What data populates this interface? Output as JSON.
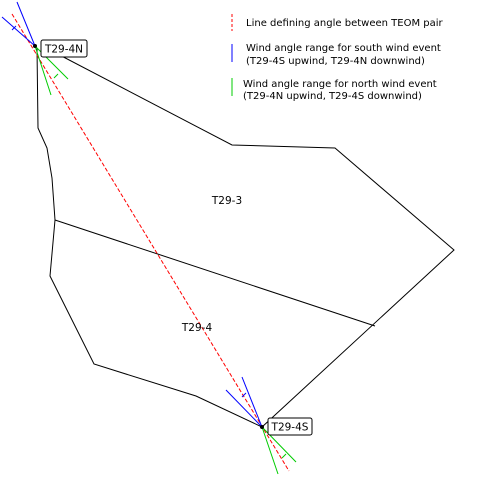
{
  "legend": {
    "pair_line": {
      "label": "Line defining angle between TEOM pair",
      "color": "#ff0000"
    },
    "south_wind": {
      "line1": "Wind angle range for south wind event",
      "line2": "(T29-4S upwind, T29-4N downwind)",
      "color": "#0000ff"
    },
    "north_wind": {
      "line1": "Wind angle range for north wind event",
      "line2": "(T29-4N upwind, T29-4S downwind)",
      "color": "#00cc00"
    }
  },
  "stations": {
    "north": {
      "label": "T29-4N"
    },
    "south": {
      "label": "T29-4S"
    }
  },
  "regions": {
    "upper": {
      "label": "T29-3"
    },
    "lower": {
      "label": "T29-4"
    }
  },
  "colors": {
    "outline": "#000000",
    "background": "#ffffff"
  }
}
